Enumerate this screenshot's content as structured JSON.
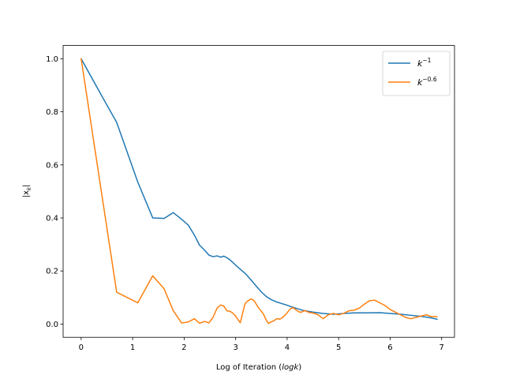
{
  "chart_data": {
    "type": "line",
    "title": "",
    "xlabel": "Log of Iteration (",
    "xlabel_math": "logk",
    "xlabel_suffix": ")",
    "ylabel": "|x",
    "ylabel_sub": "k",
    "ylabel_suffix": "|",
    "xlim": [
      -0.35,
      7.25
    ],
    "ylim": [
      -0.05,
      1.05
    ],
    "xticks": [
      0,
      1,
      2,
      3,
      4,
      5,
      6,
      7
    ],
    "xtick_labels": [
      "0",
      "1",
      "2",
      "3",
      "4",
      "5",
      "6",
      "7"
    ],
    "yticks": [
      0.0,
      0.2,
      0.4,
      0.6,
      0.8,
      1.0
    ],
    "ytick_labels": [
      "0.0",
      "0.2",
      "0.4",
      "0.6",
      "0.8",
      "1.0"
    ],
    "grid": false,
    "legend_position": "top-right",
    "series": [
      {
        "name": "k",
        "name_sup": "−1",
        "color": "#1f77b4",
        "x": [
          0,
          0.4,
          0.69,
          1.1,
          1.39,
          1.61,
          1.79,
          1.95,
          2.08,
          2.2,
          2.3,
          2.4,
          2.48,
          2.56,
          2.64,
          2.71,
          2.77,
          2.83,
          2.89,
          2.94,
          3.0,
          3.1,
          3.2,
          3.3,
          3.4,
          3.5,
          3.6,
          3.7,
          3.8,
          3.9,
          4.0,
          4.1,
          4.2,
          4.3,
          4.5,
          4.7,
          4.9,
          5.1,
          5.3,
          5.5,
          5.8,
          6.0,
          6.2,
          6.4,
          6.6,
          6.8,
          6.91
        ],
        "y": [
          1.0,
          0.86,
          0.76,
          0.535,
          0.4,
          0.398,
          0.42,
          0.395,
          0.373,
          0.335,
          0.297,
          0.278,
          0.26,
          0.254,
          0.257,
          0.252,
          0.256,
          0.25,
          0.242,
          0.233,
          0.222,
          0.205,
          0.188,
          0.166,
          0.143,
          0.121,
          0.103,
          0.091,
          0.083,
          0.077,
          0.071,
          0.064,
          0.058,
          0.052,
          0.045,
          0.04,
          0.037,
          0.04,
          0.042,
          0.042,
          0.043,
          0.04,
          0.037,
          0.033,
          0.029,
          0.023,
          0.018
        ]
      },
      {
        "name": "k",
        "name_sup": "−0.6",
        "color": "#ff7f0e",
        "x": [
          0,
          0.69,
          1.1,
          1.39,
          1.61,
          1.79,
          1.95,
          2.08,
          2.2,
          2.3,
          2.4,
          2.48,
          2.56,
          2.64,
          2.71,
          2.77,
          2.83,
          2.89,
          2.94,
          3.0,
          3.04,
          3.09,
          3.14,
          3.18,
          3.22,
          3.26,
          3.3,
          3.33,
          3.37,
          3.4,
          3.43,
          3.47,
          3.5,
          3.53,
          3.56,
          3.58,
          3.61,
          3.64,
          3.66,
          3.69,
          3.71,
          3.74,
          3.76,
          3.78,
          3.81,
          3.83,
          3.85,
          3.87,
          3.89,
          3.91,
          3.93,
          3.95,
          3.97,
          3.99,
          4.01,
          4.03,
          4.05,
          4.07,
          4.09,
          4.11,
          4.13,
          4.14,
          4.16,
          4.18,
          4.2,
          4.21,
          4.23,
          4.25,
          4.26,
          4.28,
          4.29,
          4.31,
          4.33,
          4.34,
          4.36,
          4.37,
          4.39,
          4.4,
          4.41,
          4.43,
          4.44,
          4.5,
          4.6,
          4.7,
          4.8,
          4.9,
          5.0,
          5.1,
          5.2,
          5.3,
          5.4,
          5.5,
          5.6,
          5.7,
          5.8,
          5.9,
          6.0,
          6.1,
          6.2,
          6.3,
          6.4,
          6.5,
          6.6,
          6.7,
          6.8,
          6.91
        ],
        "y": [
          1.0,
          0.12,
          0.08,
          0.182,
          0.133,
          0.05,
          0.004,
          0.008,
          0.02,
          0.003,
          0.01,
          0.004,
          0.025,
          0.06,
          0.072,
          0.068,
          0.05,
          0.048,
          0.042,
          0.03,
          0.018,
          0.005,
          0.045,
          0.075,
          0.085,
          0.09,
          0.095,
          0.092,
          0.085,
          0.075,
          0.065,
          0.055,
          0.048,
          0.04,
          0.03,
          0.02,
          0.01,
          0.002,
          0.005,
          0.008,
          0.01,
          0.012,
          0.015,
          0.018,
          0.02,
          0.02,
          0.018,
          0.02,
          0.022,
          0.025,
          0.028,
          0.032,
          0.036,
          0.04,
          0.045,
          0.05,
          0.055,
          0.058,
          0.06,
          0.062,
          0.06,
          0.058,
          0.055,
          0.052,
          0.05,
          0.048,
          0.046,
          0.045,
          0.044,
          0.045,
          0.046,
          0.048,
          0.05,
          0.05,
          0.049,
          0.048,
          0.047,
          0.046,
          0.045,
          0.044,
          0.043,
          0.042,
          0.035,
          0.02,
          0.035,
          0.04,
          0.035,
          0.04,
          0.05,
          0.052,
          0.06,
          0.075,
          0.088,
          0.09,
          0.08,
          0.07,
          0.055,
          0.045,
          0.035,
          0.025,
          0.02,
          0.025,
          0.03,
          0.035,
          0.028,
          0.028
        ]
      }
    ]
  }
}
